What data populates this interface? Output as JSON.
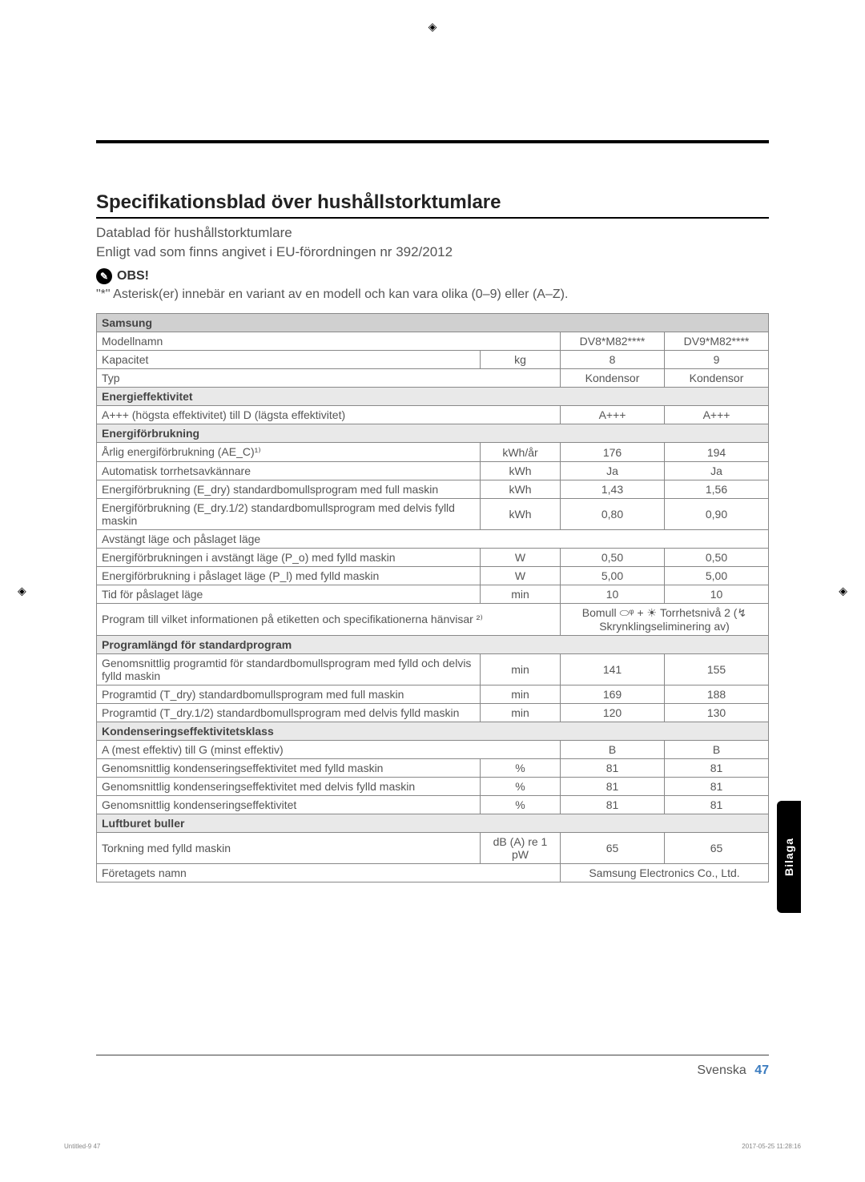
{
  "registration": {
    "symbol": "◈"
  },
  "title": "Specifikationsblad över hushållstorktumlare",
  "sub1": "Datablad för hushållstorktumlare",
  "sub2": "Enligt vad som finns angivet i EU-förordningen nr 392/2012",
  "obs_label": "OBS!",
  "obs_text": "\"*\" Asterisk(er) innebär en variant av en modell och kan vara olika (0–9) eller (A–Z).",
  "brand": "Samsung",
  "rows": {
    "model_label": "Modellnamn",
    "model_v1": "DV8*M82****",
    "model_v2": "DV9*M82****",
    "cap_label": "Kapacitet",
    "cap_unit": "kg",
    "cap_v1": "8",
    "cap_v2": "9",
    "type_label": "Typ",
    "type_v1": "Kondensor",
    "type_v2": "Kondensor",
    "sec_eff": "Energieffektivitet",
    "eff_label": "A+++ (högsta effektivitet) till D (lägsta effektivitet)",
    "eff_v1": "A+++",
    "eff_v2": "A+++",
    "sec_energy": "Energiförbrukning",
    "annual_label": "Årlig energiförbrukning (AE_C)¹⁾",
    "annual_unit": "kWh/år",
    "annual_v1": "176",
    "annual_v2": "194",
    "auto_label": "Automatisk torrhetsavkännare",
    "auto_unit": "kWh",
    "auto_v1": "Ja",
    "auto_v2": "Ja",
    "edry_label": "Energiförbrukning (E_dry) standardbomullsprogram med full maskin",
    "edry_unit": "kWh",
    "edry_v1": "1,43",
    "edry_v2": "1,56",
    "edry12_label": "Energiförbrukning (E_dry.1/2) standardbomullsprogram med delvis fylld maskin",
    "edry12_unit": "kWh",
    "edry12_v1": "0,80",
    "edry12_v2": "0,90",
    "offon_label": "Avstängt läge och påslaget läge",
    "po_label": "Energiförbrukningen i avstängt läge (P_o) med fylld maskin",
    "po_unit": "W",
    "po_v1": "0,50",
    "po_v2": "0,50",
    "pl_label": "Energiförbrukning i påslaget läge (P_l) med fylld maskin",
    "pl_unit": "W",
    "pl_v1": "5,00",
    "pl_v2": "5,00",
    "tid_label": "Tid för påslaget läge",
    "tid_unit": "min",
    "tid_v1": "10",
    "tid_v2": "10",
    "prog_label": "Program till vilket informationen på etiketten och specifikationerna hänvisar ²⁾",
    "prog_val": "Bomull ⬭ᵠ + ☀ Torrhetsnivå 2 (↯ Skrynklingseliminering av)",
    "sec_progtime": "Programlängd för standardprogram",
    "avg_label": "Genomsnittlig programtid för standardbomullsprogram med fylld och delvis fylld maskin",
    "avg_unit": "min",
    "avg_v1": "141",
    "avg_v2": "155",
    "tdry_label": "Programtid (T_dry) standardbomullsprogram med full maskin",
    "tdry_unit": "min",
    "tdry_v1": "169",
    "tdry_v2": "188",
    "tdry12_label": "Programtid (T_dry.1/2) standardbomullsprogram med delvis fylld maskin",
    "tdry12_unit": "min",
    "tdry12_v1": "120",
    "tdry12_v2": "130",
    "sec_cond": "Kondenseringseffektivitetsklass",
    "ag_label": "A (mest effektiv) till G (minst effektiv)",
    "ag_v1": "B",
    "ag_v2": "B",
    "condfull_label": "Genomsnittlig kondenseringseffektivitet med fylld maskin",
    "condfull_unit": "%",
    "condfull_v1": "81",
    "condfull_v2": "81",
    "condpart_label": "Genomsnittlig kondenseringseffektivitet med delvis fylld maskin",
    "condpart_unit": "%",
    "condpart_v1": "81",
    "condpart_v2": "81",
    "condavg_label": "Genomsnittlig kondenseringseffektivitet",
    "condavg_unit": "%",
    "condavg_v1": "81",
    "condavg_v2": "81",
    "sec_noise": "Luftburet buller",
    "noise_label": "Torkning med fylld maskin",
    "noise_unit": "dB (A) re 1 pW",
    "noise_v1": "65",
    "noise_v2": "65",
    "company_label": "Företagets namn",
    "company_val": "Samsung Electronics Co., Ltd."
  },
  "side_tab": "Bilaga",
  "footer_lang": "Svenska",
  "footer_page": "47",
  "meta_left": "Untitled-9   47",
  "meta_right": "2017-05-25   11:28:16",
  "colors": {
    "section_bg": "#e9e9e9",
    "header_bg": "#d0d0d0",
    "border": "#888888",
    "text": "#555555",
    "page_num": "#3a7bbf"
  }
}
